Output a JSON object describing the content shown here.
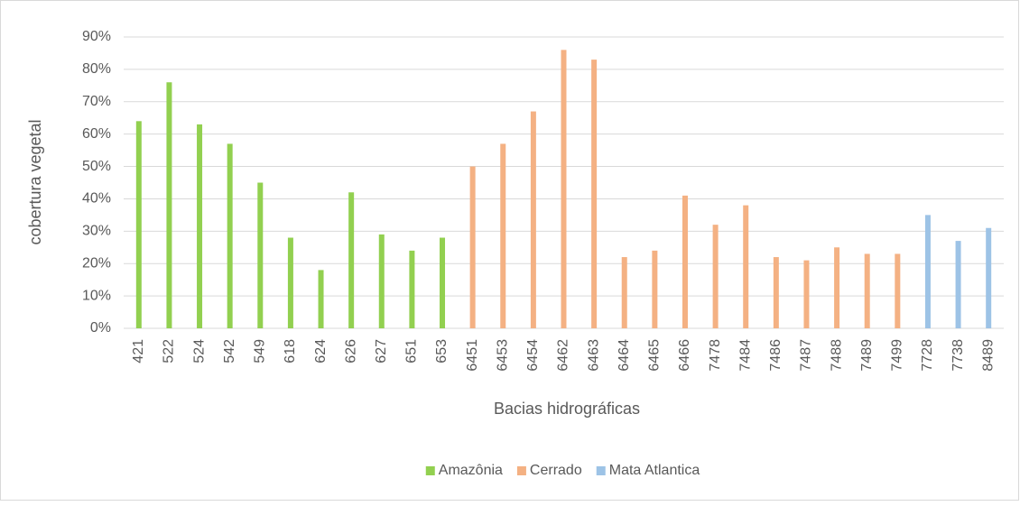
{
  "chart_data": {
    "type": "bar",
    "y_label": "cobertura vegetal",
    "x_label": "Bacias hidrográficas",
    "categories": [
      "421",
      "522",
      "524",
      "542",
      "549",
      "618",
      "624",
      "626",
      "627",
      "651",
      "653",
      "6451",
      "6453",
      "6454",
      "6462",
      "6463",
      "6464",
      "6465",
      "6466",
      "7478",
      "7484",
      "7486",
      "7487",
      "7488",
      "7489",
      "7499",
      "7728",
      "7738",
      "8489"
    ],
    "series": [
      {
        "name": "Amazônia",
        "color": "#92d050",
        "values": [
          64,
          76,
          63,
          57,
          45,
          28,
          18,
          42,
          29,
          24,
          28,
          null,
          null,
          null,
          null,
          null,
          null,
          null,
          null,
          null,
          null,
          null,
          null,
          null,
          null,
          null,
          null,
          null,
          null
        ]
      },
      {
        "name": "Cerrado",
        "color": "#f4b183",
        "values": [
          null,
          null,
          null,
          null,
          null,
          null,
          null,
          null,
          null,
          null,
          null,
          50,
          57,
          67,
          86,
          83,
          22,
          24,
          41,
          32,
          38,
          22,
          21,
          25,
          23,
          23,
          null,
          null,
          null
        ]
      },
      {
        "name": "Mata Atlantica",
        "color": "#9dc3e6",
        "values": [
          null,
          null,
          null,
          null,
          null,
          null,
          null,
          null,
          null,
          null,
          null,
          null,
          null,
          null,
          null,
          null,
          null,
          null,
          null,
          null,
          null,
          null,
          null,
          null,
          null,
          null,
          35,
          27,
          31
        ]
      }
    ],
    "ylim": [
      0,
      90
    ],
    "yticks": [
      {
        "value": 0,
        "label": "0%"
      },
      {
        "value": 10,
        "label": "10%"
      },
      {
        "value": 20,
        "label": "20%"
      },
      {
        "value": 30,
        "label": "30%"
      },
      {
        "value": 40,
        "label": "40%"
      },
      {
        "value": 50,
        "label": "50%"
      },
      {
        "value": 60,
        "label": "60%"
      },
      {
        "value": 70,
        "label": "70%"
      },
      {
        "value": 80,
        "label": "80%"
      },
      {
        "value": 90,
        "label": "90%"
      }
    ],
    "grid": true,
    "legend": "bottom"
  }
}
